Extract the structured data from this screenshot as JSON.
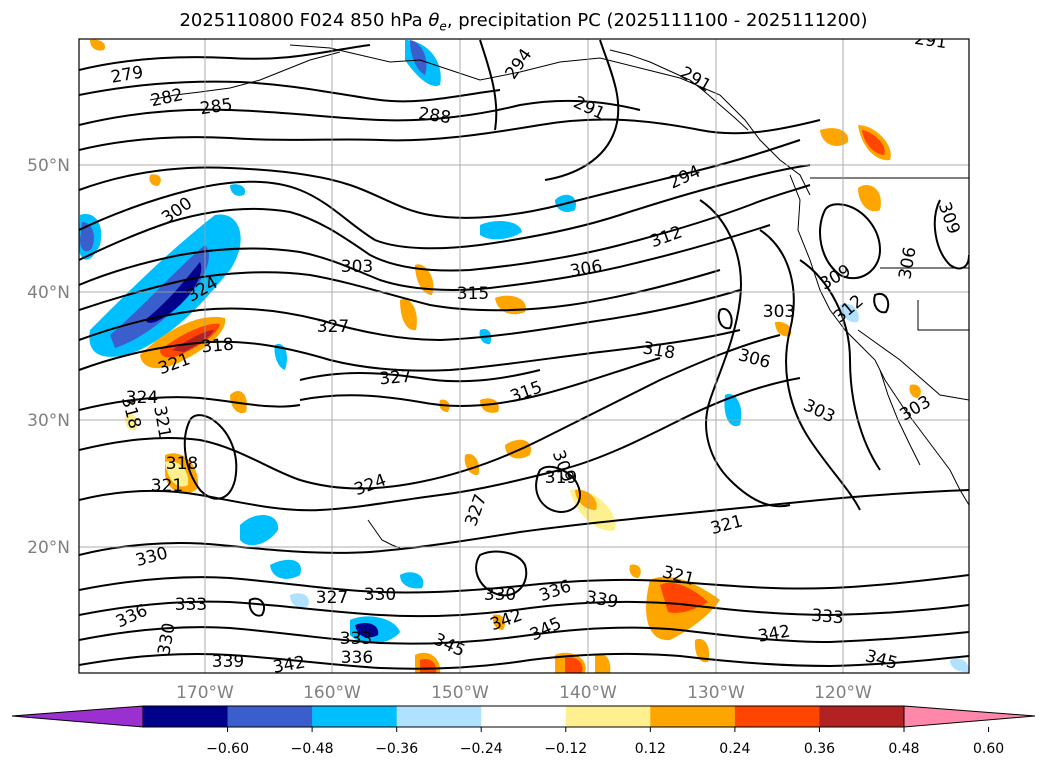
{
  "title": {
    "prefix": "2025110800 F024 850 hPa ",
    "symbol": "θ",
    "subscript": "e",
    "suffix": ", precipitation PC (2025111100 - 2025111200)"
  },
  "map": {
    "latitude_labels": [
      "50°N",
      "40°N",
      "30°N",
      "20°N"
    ],
    "longitude_labels": [
      "170°W",
      "160°W",
      "150°W",
      "140°W",
      "130°W",
      "120°W"
    ],
    "contour_labels": [
      "279",
      "282",
      "285",
      "288",
      "291",
      "294",
      "291",
      "291",
      "294",
      "300",
      "303",
      "306",
      "312",
      "315",
      "318",
      "324",
      "327",
      "327",
      "315",
      "318",
      "306",
      "303",
      "309",
      "312",
      "303",
      "303",
      "306",
      "309",
      "318",
      "321",
      "324",
      "321",
      "318",
      "321",
      "324",
      "327",
      "309",
      "319",
      "321",
      "321",
      "330",
      "327",
      "330",
      "330",
      "336",
      "333",
      "339",
      "342",
      "345",
      "336",
      "333",
      "336",
      "330",
      "339",
      "342",
      "345",
      "342",
      "333",
      "345"
    ],
    "colors": {
      "contour": "#000000",
      "grid": "#a0a0a0",
      "coast": "#000000"
    }
  },
  "colorbar": {
    "ticks": [
      "−0.60",
      "−0.48",
      "−0.36",
      "−0.24",
      "−0.12",
      "0.12",
      "0.24",
      "0.36",
      "0.48",
      "0.60"
    ],
    "colors": [
      "#9b30d0",
      "#00008b",
      "#3a5fcd",
      "#00bfff",
      "#b0e2ff",
      "#ffffff",
      "#fff08f",
      "#ffa500",
      "#ff4500",
      "#b22222",
      "#ff88aa"
    ]
  }
}
